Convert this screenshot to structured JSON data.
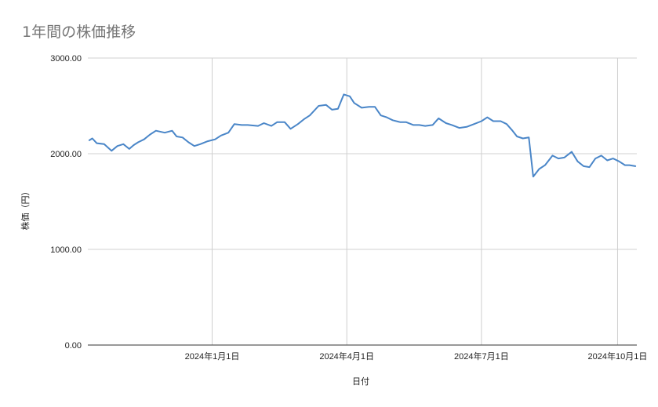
{
  "chart_data": {
    "type": "line",
    "title": "1年間の株価推移",
    "xlabel": "日付",
    "ylabel": "株価（円）",
    "ylim": [
      0,
      3000
    ],
    "xlim": [
      "2023-10-09",
      "2024-10-14"
    ],
    "y_ticks": [
      "0.00",
      "1000.00",
      "2000.00",
      "3000.00"
    ],
    "x_ticks": [
      {
        "label": "2024年1月1日",
        "date": "2024-01-01"
      },
      {
        "label": "2024年4月1日",
        "date": "2024-04-01"
      },
      {
        "label": "2024年7月1日",
        "date": "2024-07-01"
      },
      {
        "label": "2024年10月1日",
        "date": "2024-10-01"
      }
    ],
    "grid": true,
    "legend": "none",
    "color": "#4a86c8",
    "series": [
      {
        "x": [
          "2023-10-10",
          "2023-10-12",
          "2023-10-15",
          "2023-10-20",
          "2023-10-25",
          "2023-10-29",
          "2023-11-02",
          "2023-11-06",
          "2023-11-09",
          "2023-11-12",
          "2023-11-16",
          "2023-11-20",
          "2023-11-24",
          "2023-11-30",
          "2023-12-05",
          "2023-12-08",
          "2023-12-12",
          "2023-12-16",
          "2023-12-20",
          "2023-12-24",
          "2023-12-29",
          "2024-01-03",
          "2024-01-07",
          "2024-01-12",
          "2024-01-16",
          "2024-01-21",
          "2024-01-25",
          "2024-02-01",
          "2024-02-05",
          "2024-02-10",
          "2024-02-14",
          "2024-02-19",
          "2024-02-23",
          "2024-02-28",
          "2024-03-03",
          "2024-03-07",
          "2024-03-13",
          "2024-03-18",
          "2024-03-22",
          "2024-03-26",
          "2024-03-30",
          "2024-04-03",
          "2024-04-06",
          "2024-04-11",
          "2024-04-16",
          "2024-04-20",
          "2024-04-24",
          "2024-04-28",
          "2024-05-02",
          "2024-05-07",
          "2024-05-11",
          "2024-05-16",
          "2024-05-20",
          "2024-05-24",
          "2024-05-29",
          "2024-06-02",
          "2024-06-07",
          "2024-06-11",
          "2024-06-16",
          "2024-06-21",
          "2024-06-26",
          "2024-07-01",
          "2024-07-05",
          "2024-07-09",
          "2024-07-14",
          "2024-07-18",
          "2024-07-22",
          "2024-07-25",
          "2024-07-29",
          "2024-08-02",
          "2024-08-05",
          "2024-08-09",
          "2024-08-13",
          "2024-08-18",
          "2024-08-22",
          "2024-08-26",
          "2024-08-31",
          "2024-09-04",
          "2024-09-08",
          "2024-09-12",
          "2024-09-16",
          "2024-09-20",
          "2024-09-24",
          "2024-09-28",
          "2024-10-02",
          "2024-10-06",
          "2024-10-09",
          "2024-10-13"
        ],
        "values": [
          2140,
          2160,
          2110,
          2100,
          2030,
          2080,
          2100,
          2050,
          2090,
          2120,
          2150,
          2200,
          2240,
          2220,
          2240,
          2180,
          2170,
          2120,
          2080,
          2100,
          2130,
          2150,
          2190,
          2220,
          2310,
          2300,
          2300,
          2290,
          2320,
          2290,
          2330,
          2330,
          2260,
          2310,
          2360,
          2400,
          2500,
          2510,
          2460,
          2470,
          2620,
          2600,
          2530,
          2480,
          2490,
          2490,
          2400,
          2380,
          2350,
          2330,
          2330,
          2300,
          2300,
          2290,
          2300,
          2370,
          2320,
          2300,
          2270,
          2280,
          2310,
          2340,
          2380,
          2340,
          2340,
          2310,
          2240,
          2180,
          2160,
          2170,
          1760,
          1840,
          1880,
          1980,
          1950,
          1960,
          2020,
          1920,
          1870,
          1860,
          1950,
          1980,
          1930,
          1950,
          1920,
          1880,
          1880,
          1870
        ]
      }
    ]
  }
}
